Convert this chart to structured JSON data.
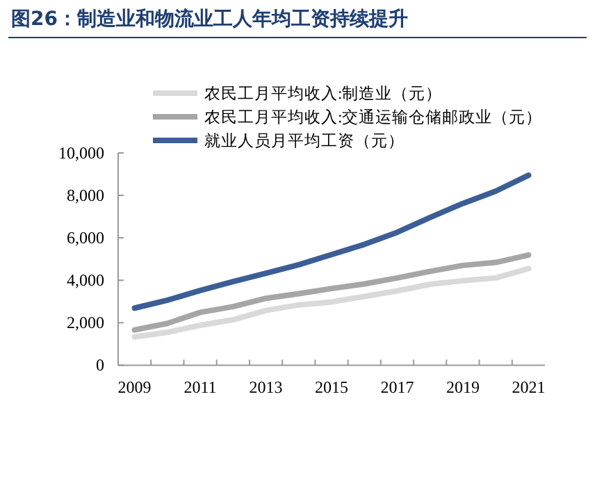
{
  "chart_data": {
    "type": "line",
    "title": "图26：制造业和物流业工人年均工资持续提升",
    "x": [
      2009,
      2010,
      2011,
      2012,
      2013,
      2014,
      2015,
      2016,
      2017,
      2018,
      2019,
      2020,
      2021
    ],
    "series": [
      {
        "name": "农民工月平均收入:制造业（元）",
        "color": "#d9d9d9",
        "values": [
          1330,
          1550,
          1880,
          2140,
          2580,
          2840,
          2980,
          3240,
          3500,
          3810,
          3980,
          4110,
          4550
        ]
      },
      {
        "name": "农民工月平均收入:交通运输仓储邮政业（元）",
        "color": "#a6a6a6",
        "values": [
          1660,
          1970,
          2490,
          2760,
          3150,
          3370,
          3610,
          3830,
          4110,
          4420,
          4700,
          4840,
          5190
        ]
      },
      {
        "name": "就业人员月平均工资（元）",
        "color": "#3b5e95",
        "values": [
          2690,
          3060,
          3520,
          3940,
          4330,
          4730,
          5210,
          5690,
          6260,
          6960,
          7620,
          8200,
          8950
        ]
      }
    ],
    "xlim": [
      2008.5,
      2021.5
    ],
    "xticks": [
      2009,
      {
        "value": 2009.5,
        "label": null
      },
      {
        "value": 2010.5,
        "label": null
      },
      2011,
      {
        "value": 2011.5,
        "label": null
      },
      {
        "value": 2012.5,
        "label": null
      },
      2013,
      {
        "value": 2013.5,
        "label": null
      },
      {
        "value": 2014.5,
        "label": null
      },
      2015,
      {
        "value": 2015.5,
        "label": null
      },
      {
        "value": 2016.5,
        "label": null
      },
      2017,
      {
        "value": 2017.5,
        "label": null
      },
      {
        "value": 2018.5,
        "label": null
      },
      2019,
      {
        "value": 2019.5,
        "label": null
      },
      {
        "value": 2020.5,
        "label": null
      },
      2021
    ],
    "ylim": [
      0,
      10000
    ],
    "yticks": [
      {
        "value": 0,
        "label": "0"
      },
      {
        "value": 2000,
        "label": "2,000"
      },
      {
        "value": 4000,
        "label": "4,000"
      },
      {
        "value": 6000,
        "label": "6,000"
      },
      {
        "value": 8000,
        "label": "8,000"
      },
      {
        "value": 10000,
        "label": "10,000"
      }
    ],
    "grid": false,
    "legend": "top",
    "marker": "none",
    "line_style": "solid"
  }
}
